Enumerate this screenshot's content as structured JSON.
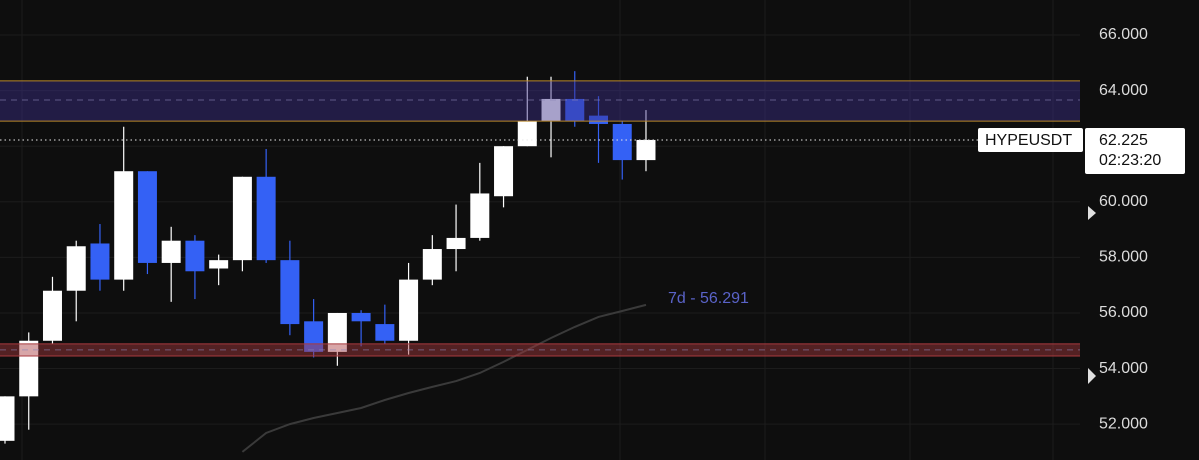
{
  "chart_data": {
    "type": "candlestick",
    "symbol": "HYPEUSDT",
    "last_price": 62.225,
    "countdown": "02:23:20",
    "up_color": "#ffffff",
    "down_color": "#3461f5",
    "grid": true,
    "ylim": [
      50.71,
      67.26
    ],
    "yticks": [
      {
        "value": 52,
        "label": "52.000"
      },
      {
        "value": 54,
        "label": "54.000"
      },
      {
        "value": 56,
        "label": "56.000"
      },
      {
        "value": 58,
        "label": "58.000"
      },
      {
        "value": 60,
        "label": "60.000"
      },
      {
        "value": 62,
        "label": "62.000"
      },
      {
        "value": 64,
        "label": "64.000"
      },
      {
        "value": 66,
        "label": "66.000"
      }
    ],
    "open": [
      51.4,
      53.0,
      55.0,
      56.8,
      58.5,
      57.2,
      61.1,
      57.8,
      58.6,
      57.6,
      57.9,
      60.9,
      57.9,
      55.7,
      54.6,
      56.0,
      55.6,
      55.0,
      57.2,
      58.3,
      58.7,
      60.2,
      62.0,
      62.9,
      63.7,
      63.1,
      62.8,
      61.5
    ],
    "high": [
      53.0,
      55.3,
      57.3,
      58.6,
      59.2,
      62.7,
      61.1,
      59.1,
      58.8,
      58.1,
      60.9,
      61.9,
      58.6,
      56.5,
      56.0,
      56.1,
      56.3,
      57.8,
      58.8,
      59.9,
      61.4,
      62.0,
      64.5,
      64.5,
      64.7,
      63.8,
      62.9,
      63.3
    ],
    "low": [
      51.3,
      51.8,
      54.9,
      55.7,
      56.8,
      56.8,
      57.4,
      56.4,
      56.5,
      57.0,
      57.5,
      57.8,
      55.2,
      54.4,
      54.1,
      54.8,
      54.9,
      54.5,
      57.0,
      57.5,
      58.6,
      59.8,
      62.0,
      61.6,
      62.7,
      61.4,
      60.8,
      61.1
    ],
    "close": [
      53.0,
      55.0,
      56.8,
      58.4,
      57.2,
      61.1,
      57.8,
      58.6,
      57.5,
      57.9,
      60.9,
      57.9,
      55.6,
      54.6,
      56.0,
      55.7,
      55.0,
      57.2,
      58.3,
      58.7,
      60.3,
      62.0,
      62.9,
      63.7,
      62.9,
      62.8,
      61.5,
      62.225
    ],
    "moving_average": {
      "color": "#3a3a3a",
      "label": "7d - 56.291",
      "label_color": "#5a63c8",
      "values": [
        null,
        null,
        null,
        null,
        null,
        null,
        null,
        null,
        null,
        null,
        51.0,
        51.68,
        52.0,
        52.22,
        52.4,
        52.58,
        52.87,
        53.12,
        53.34,
        53.55,
        53.84,
        54.24,
        54.67,
        55.1,
        55.5,
        55.86,
        56.07,
        56.291
      ]
    },
    "zones": [
      {
        "from": 62.9,
        "to": 64.35,
        "mid": 63.66,
        "color": "#3b2f8a",
        "edge_color": "#b8872a"
      },
      {
        "from": 54.45,
        "to": 54.89,
        "mid": 54.67,
        "color": "#a83a3f",
        "edge_color": "#a83a3f"
      }
    ]
  }
}
